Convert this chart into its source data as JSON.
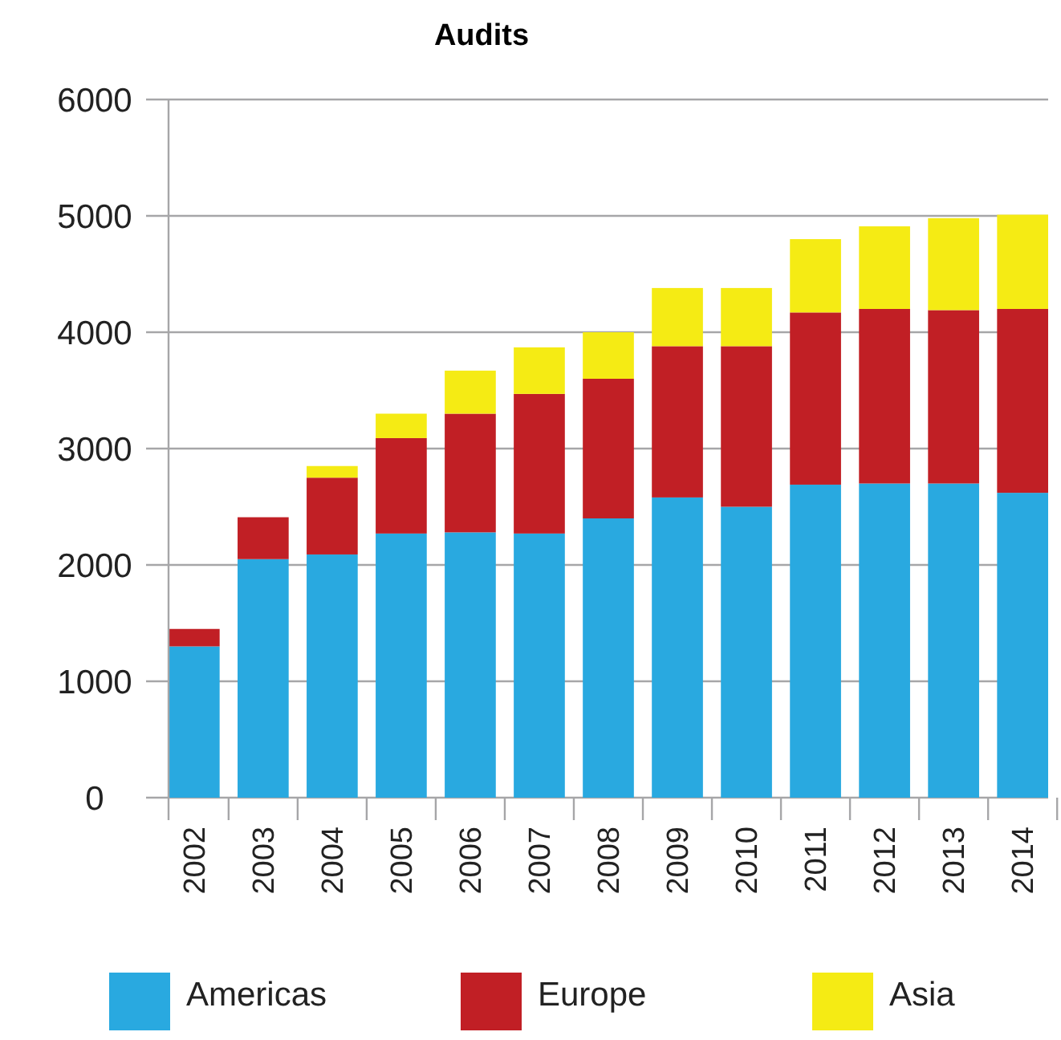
{
  "chart_data": {
    "type": "bar",
    "title": "Audits",
    "stacked": true,
    "categories": [
      "2002",
      "2003",
      "2004",
      "2005",
      "2006",
      "2007",
      "2008",
      "2009",
      "2010",
      "2011",
      "2012",
      "2013",
      "2014"
    ],
    "series": [
      {
        "name": "Americas",
        "color": "#29a9e0",
        "values": [
          1300,
          2050,
          2090,
          2270,
          2280,
          2270,
          2400,
          2580,
          2500,
          2690,
          2700,
          2700,
          2620
        ]
      },
      {
        "name": "Europe",
        "color": "#c11f25",
        "values": [
          150,
          360,
          660,
          820,
          1020,
          1200,
          1200,
          1300,
          1380,
          1480,
          1500,
          1490,
          1580
        ]
      },
      {
        "name": "Asia",
        "color": "#f5eb14",
        "values": [
          0,
          0,
          100,
          210,
          370,
          400,
          400,
          500,
          500,
          630,
          710,
          790,
          810
        ]
      }
    ],
    "ylim": [
      0,
      6000
    ],
    "yticks": [
      0,
      1000,
      2000,
      3000,
      4000,
      5000,
      6000
    ],
    "grid": "y",
    "legend": "bottom"
  }
}
